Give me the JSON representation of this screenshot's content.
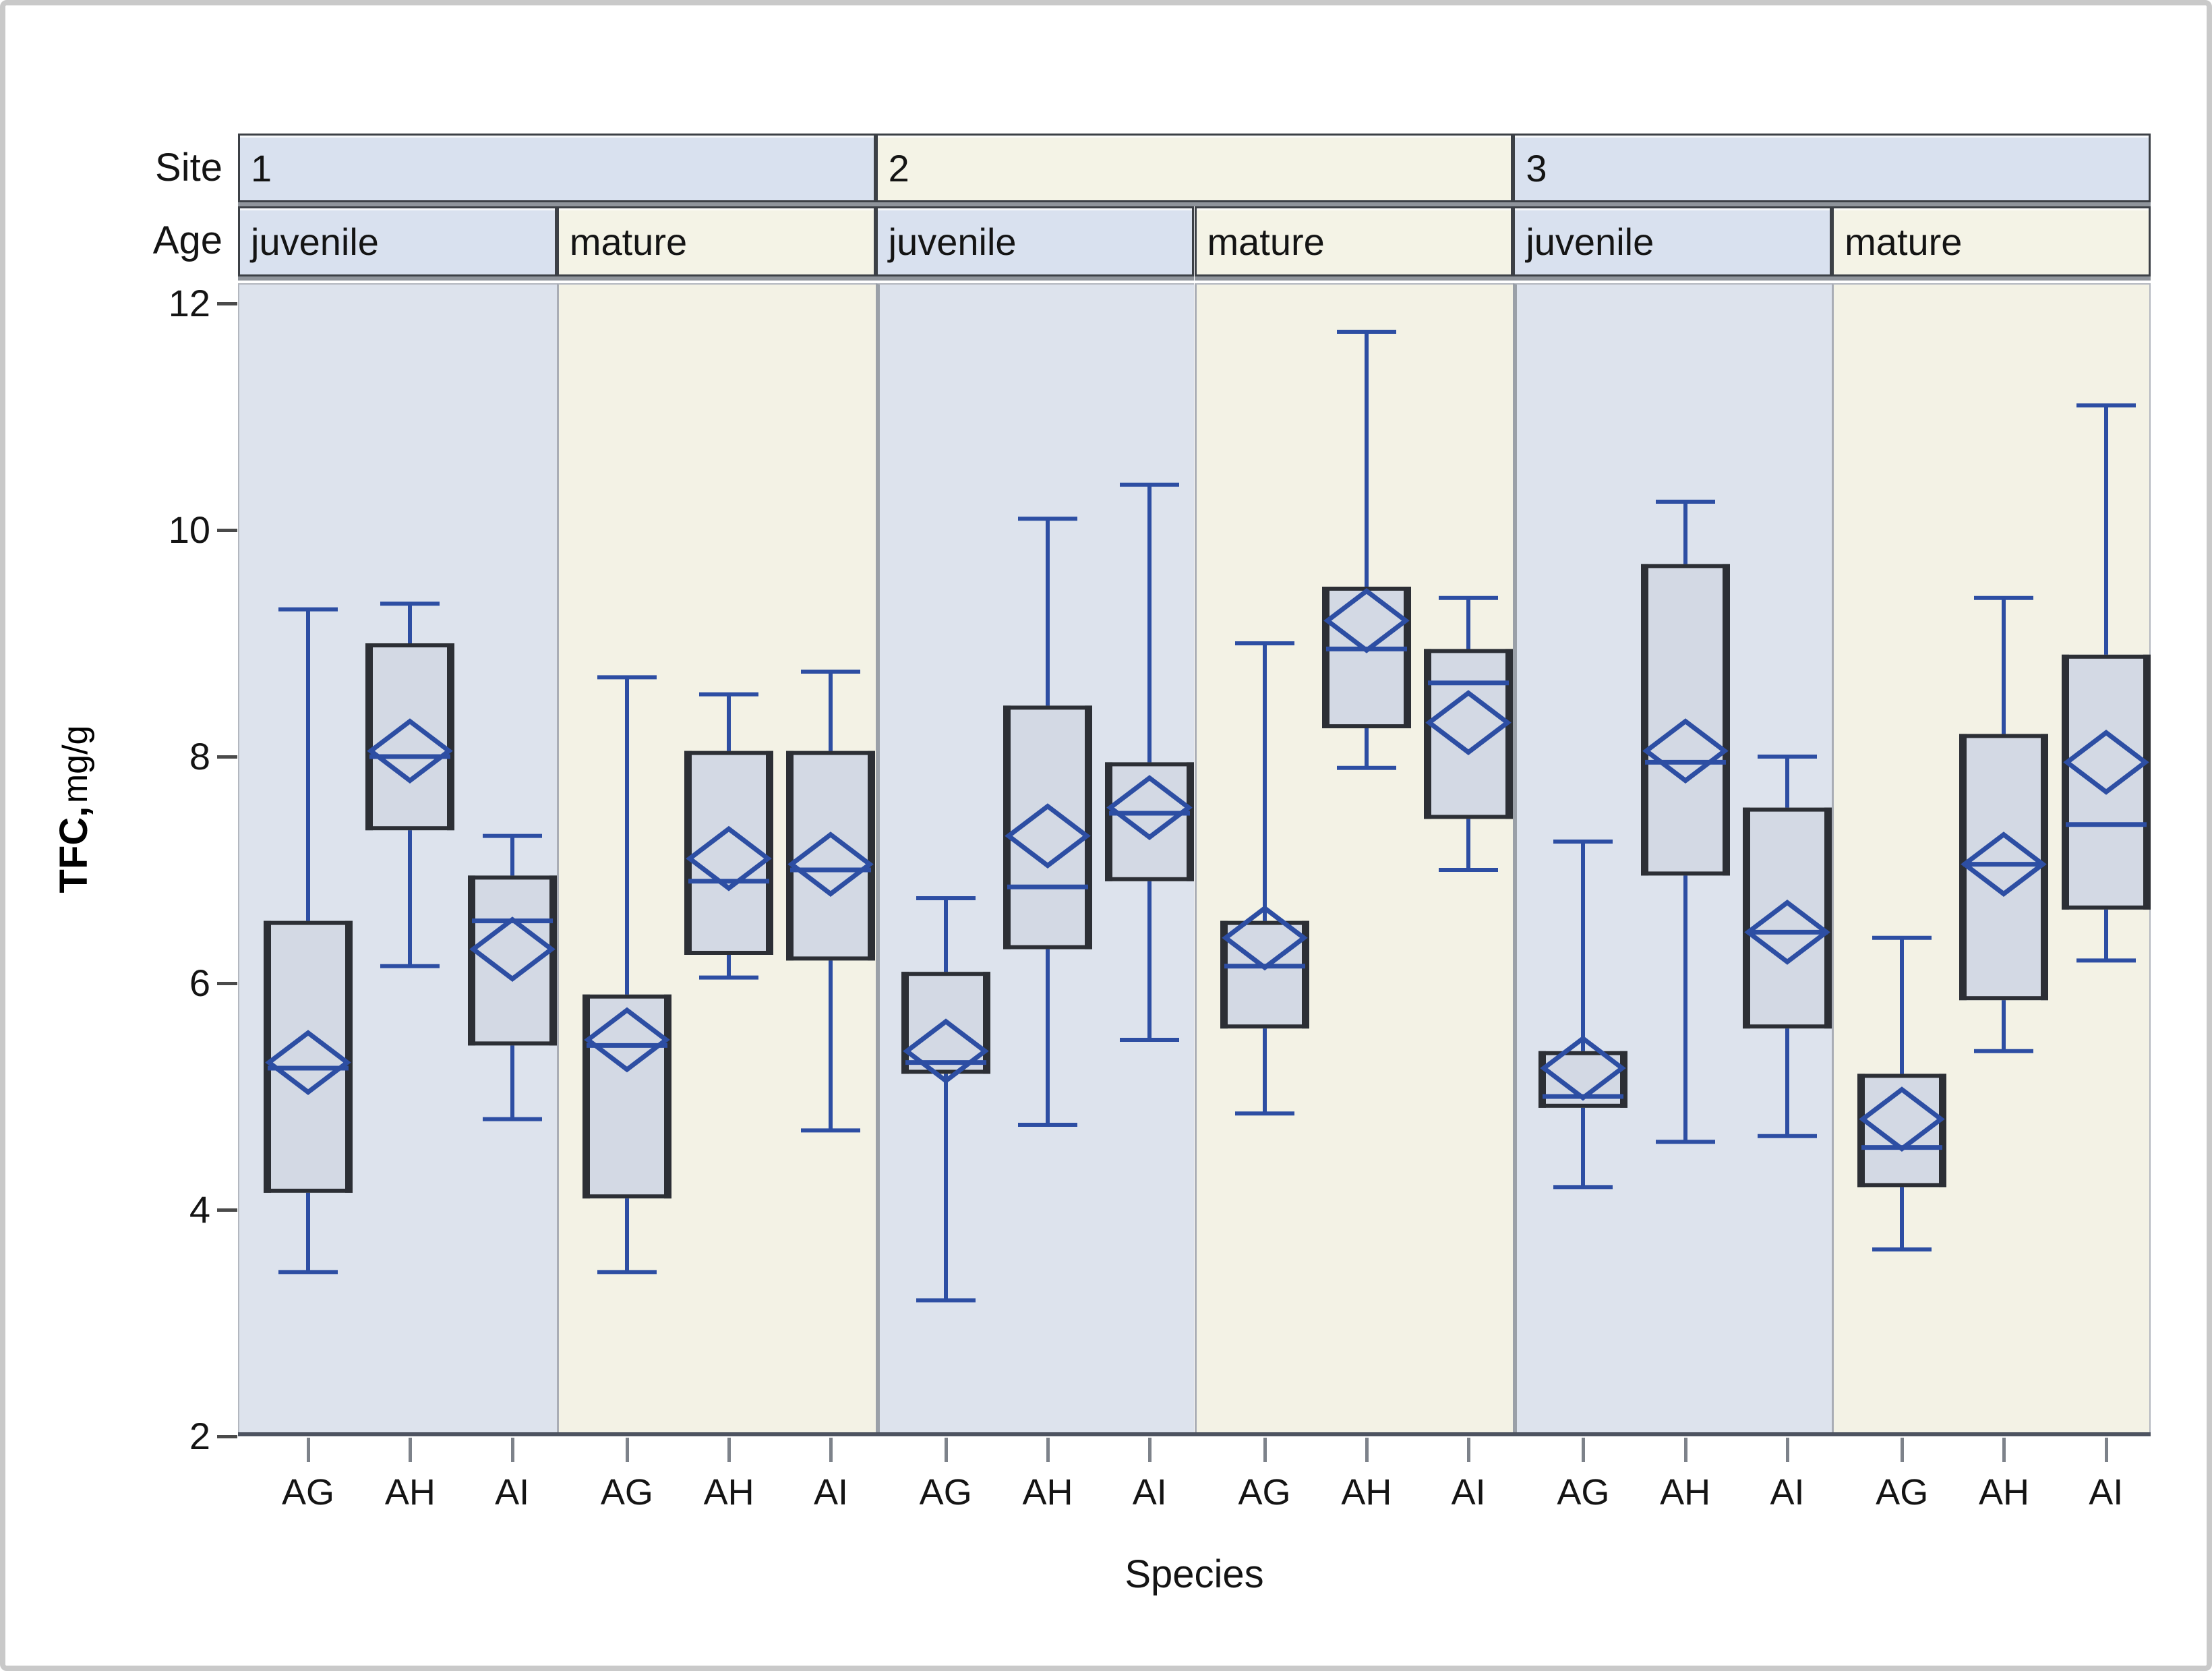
{
  "figure": {
    "site_row_label": "Site",
    "age_row_label": "Age",
    "y_axis_label_bold": "TFC,",
    "y_axis_label_unit": "mg/g",
    "x_axis_title": "Species"
  },
  "palette": {
    "juvenile_band": "#d9e1ef",
    "mature_band": "#f4f3e6",
    "panel_juvenile": "#dde3ed",
    "panel_mature": "#f3f2e5",
    "box_fill": "#d3d9e4",
    "box_edge": "#2c2f35",
    "accent_blue": "#2d4ea3",
    "axis_line": "#4d5360",
    "figure_border": "#c9c9c9"
  },
  "chart_data": {
    "type": "boxplot",
    "xlabel": "Species",
    "ylabel": "TFC, mg/g",
    "ylim": [
      2,
      12.35
    ],
    "yticks": [
      12,
      10,
      8,
      6,
      4,
      2
    ],
    "grid": "off",
    "facet_rows": [
      "Site",
      "Age"
    ],
    "sites": [
      "1",
      "2",
      "3"
    ],
    "ages": [
      "juvenile",
      "mature"
    ],
    "species": [
      "AG",
      "AH",
      "AI"
    ],
    "marker_semantics": {
      "diamond": "mean",
      "horizontal_line": "median"
    },
    "groups": [
      {
        "site": "1",
        "age": "juvenile",
        "boxes": [
          {
            "species": "AG",
            "whisker_low": 3.45,
            "q1": 4.15,
            "median": 5.25,
            "mean": 5.3,
            "q3": 6.55,
            "whisker_high": 9.3
          },
          {
            "species": "AH",
            "whisker_low": 6.15,
            "q1": 7.35,
            "median": 8.0,
            "mean": 8.05,
            "q3": 9.0,
            "whisker_high": 9.35
          },
          {
            "species": "AI",
            "whisker_low": 4.8,
            "q1": 5.45,
            "median": 6.55,
            "mean": 6.3,
            "q3": 6.95,
            "whisker_high": 7.3
          }
        ]
      },
      {
        "site": "1",
        "age": "mature",
        "boxes": [
          {
            "species": "AG",
            "whisker_low": 3.45,
            "q1": 4.1,
            "median": 5.45,
            "mean": 5.5,
            "q3": 5.9,
            "whisker_high": 8.7
          },
          {
            "species": "AH",
            "whisker_low": 6.05,
            "q1": 6.25,
            "median": 6.9,
            "mean": 7.1,
            "q3": 8.05,
            "whisker_high": 8.55
          },
          {
            "species": "AI",
            "whisker_low": 4.7,
            "q1": 6.2,
            "median": 7.0,
            "mean": 7.05,
            "q3": 8.05,
            "whisker_high": 8.75
          }
        ]
      },
      {
        "site": "2",
        "age": "juvenile",
        "boxes": [
          {
            "species": "AG",
            "whisker_low": 3.2,
            "q1": 5.2,
            "median": 5.3,
            "mean": 5.4,
            "q3": 6.1,
            "whisker_high": 6.75
          },
          {
            "species": "AH",
            "whisker_low": 4.75,
            "q1": 6.3,
            "median": 6.85,
            "mean": 7.3,
            "q3": 8.45,
            "whisker_high": 10.1
          },
          {
            "species": "AI",
            "whisker_low": 5.5,
            "q1": 6.9,
            "median": 7.5,
            "mean": 7.55,
            "q3": 7.95,
            "whisker_high": 10.4
          }
        ]
      },
      {
        "site": "2",
        "age": "mature",
        "boxes": [
          {
            "species": "AG",
            "whisker_low": 4.85,
            "q1": 5.6,
            "median": 6.15,
            "mean": 6.4,
            "q3": 6.55,
            "whisker_high": 9.0
          },
          {
            "species": "AH",
            "whisker_low": 7.9,
            "q1": 8.25,
            "median": 8.95,
            "mean": 9.2,
            "q3": 9.5,
            "whisker_high": 11.75
          },
          {
            "species": "AI",
            "whisker_low": 7.0,
            "q1": 7.45,
            "median": 8.65,
            "mean": 8.3,
            "q3": 8.95,
            "whisker_high": 9.4
          }
        ]
      },
      {
        "site": "3",
        "age": "juvenile",
        "boxes": [
          {
            "species": "AG",
            "whisker_low": 4.2,
            "q1": 4.9,
            "median": 5.0,
            "mean": 5.25,
            "q3": 5.4,
            "whisker_high": 7.25
          },
          {
            "species": "AH",
            "whisker_low": 4.6,
            "q1": 6.95,
            "median": 7.95,
            "mean": 8.05,
            "q3": 9.7,
            "whisker_high": 10.25
          },
          {
            "species": "AI",
            "whisker_low": 4.65,
            "q1": 5.6,
            "median": 6.45,
            "mean": 6.45,
            "q3": 7.55,
            "whisker_high": 8.0
          }
        ]
      },
      {
        "site": "3",
        "age": "mature",
        "boxes": [
          {
            "species": "AG",
            "whisker_low": 3.65,
            "q1": 4.2,
            "median": 4.55,
            "mean": 4.8,
            "q3": 5.2,
            "whisker_high": 6.4
          },
          {
            "species": "AH",
            "whisker_low": 5.4,
            "q1": 5.85,
            "median": 7.05,
            "mean": 7.05,
            "q3": 8.2,
            "whisker_high": 9.4
          },
          {
            "species": "AI",
            "whisker_low": 6.2,
            "q1": 6.65,
            "median": 7.4,
            "mean": 7.95,
            "q3": 8.9,
            "whisker_high": 11.1
          }
        ]
      }
    ]
  }
}
